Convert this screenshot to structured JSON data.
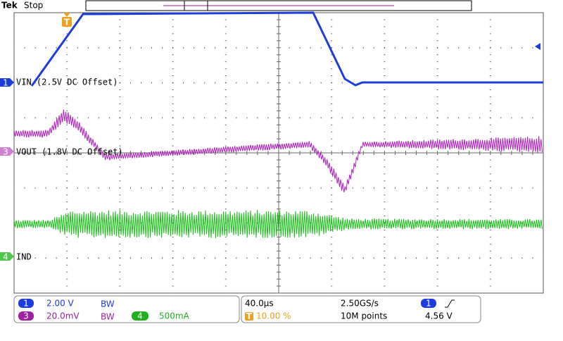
{
  "header": {
    "brand": "Tek",
    "status": "Stop"
  },
  "markers": {
    "trigger": "T",
    "ch1": "1",
    "ch3": "3",
    "ch4": "4"
  },
  "traces": {
    "ch1": "VIN (2.5V DC Offset)",
    "ch3": "VOUT (1.8V DC Offset)",
    "ch4": "IND"
  },
  "readout": {
    "ch1": {
      "number": "1",
      "scale": "2.00 V",
      "bw": "BW"
    },
    "ch3": {
      "number": "3",
      "scale": "20.0mV",
      "bw": "BW"
    },
    "ch4": {
      "number": "4",
      "scale": "500mA"
    },
    "timebase": "40.0µs",
    "sample_rate": "2.50GS/s",
    "trigger_position": {
      "icon": "T",
      "value": "10.00 %"
    },
    "record_length": "10M points",
    "trigger": {
      "source": "1",
      "level": "4.56 V"
    }
  }
}
